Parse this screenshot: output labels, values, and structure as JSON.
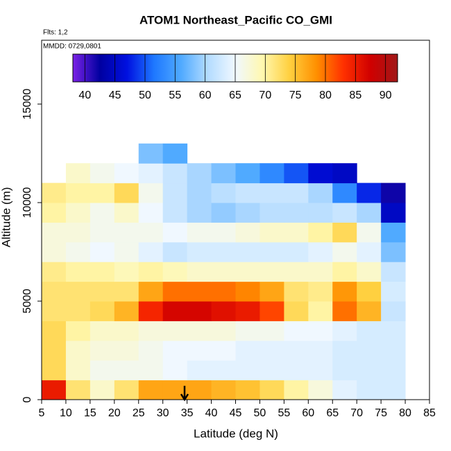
{
  "chart_data": {
    "type": "heatmap",
    "title": "ATOM1 Northeast_Pacific CO_GMI",
    "annotations": [
      "Flts: 1,2",
      "MMDD: 0729,0801"
    ],
    "xlabel": "Latitude (deg N)",
    "ylabel": "Altitude (m)",
    "xlim": [
      5,
      85
    ],
    "ylim": [
      0,
      18240
    ],
    "xticks": [
      5,
      10,
      15,
      20,
      25,
      30,
      35,
      40,
      45,
      50,
      55,
      60,
      65,
      70,
      75,
      80,
      85
    ],
    "yticks": [
      0,
      5000,
      10000,
      15000
    ],
    "x_edges": [
      5,
      10,
      15,
      20,
      25,
      30,
      35,
      40,
      45,
      50,
      55,
      60,
      65,
      70,
      75,
      80
    ],
    "y_edges": [
      0,
      1000,
      2000,
      3000,
      4000,
      5000,
      6000,
      7000,
      8000,
      9000,
      10000,
      11000,
      12000,
      13000
    ],
    "values": [
      [
        85,
        72,
        68,
        72,
        77,
        77,
        77,
        76,
        75,
        73,
        70,
        67,
        64,
        63,
        63
      ],
      [
        73,
        68,
        66,
        66,
        66,
        65,
        64,
        64,
        64,
        64,
        64,
        64,
        63,
        63,
        63
      ],
      [
        73,
        68,
        67,
        67,
        66,
        65,
        65,
        65,
        64,
        64,
        64,
        64,
        63,
        63,
        63
      ],
      [
        73,
        70,
        68,
        68,
        67,
        67,
        67,
        67,
        66,
        66,
        65,
        65,
        64,
        63,
        63
      ],
      [
        72,
        72,
        73,
        76,
        84,
        87,
        87,
        86,
        85,
        82,
        73,
        70,
        80,
        76,
        62
      ],
      [
        72,
        72,
        72,
        72,
        77,
        80,
        80,
        80,
        79,
        77,
        72,
        71,
        78,
        74,
        63
      ],
      [
        71,
        70,
        70,
        69,
        70,
        69,
        68,
        68,
        68,
        68,
        68,
        68,
        70,
        68,
        62
      ],
      [
        67,
        66,
        65,
        66,
        64,
        62,
        63,
        63,
        63,
        63,
        63,
        64,
        66,
        64,
        58
      ],
      [
        67,
        67,
        66,
        66,
        66,
        65,
        66,
        66,
        67,
        68,
        68,
        70,
        73,
        66,
        56
      ],
      [
        70,
        68,
        66,
        68,
        65,
        62,
        60,
        59,
        60,
        61,
        61,
        61,
        62,
        60,
        45
      ],
      [
        71,
        70,
        70,
        73,
        66,
        62,
        60,
        61,
        62,
        62,
        62,
        60,
        53,
        48,
        42
      ],
      [
        null,
        68,
        66,
        65,
        64,
        62,
        60,
        58,
        56,
        53,
        50,
        46,
        45,
        null,
        null
      ],
      [
        null,
        null,
        null,
        null,
        58,
        56,
        null,
        null,
        null,
        null,
        null,
        null,
        null,
        null,
        null
      ]
    ],
    "colorbar": {
      "lim": [
        38,
        92
      ],
      "ticks": [
        40,
        45,
        50,
        55,
        60,
        65,
        70,
        75,
        80,
        85,
        90
      ],
      "colors": [
        "#7b22e6",
        "#0000a0",
        "#0010e0",
        "#1e78ff",
        "#50aaff",
        "#b4dcff",
        "#f0f8ff",
        "#fff8b0",
        "#ffd040",
        "#ff9000",
        "#ff3000",
        "#d00000",
        "#a01818"
      ]
    }
  }
}
